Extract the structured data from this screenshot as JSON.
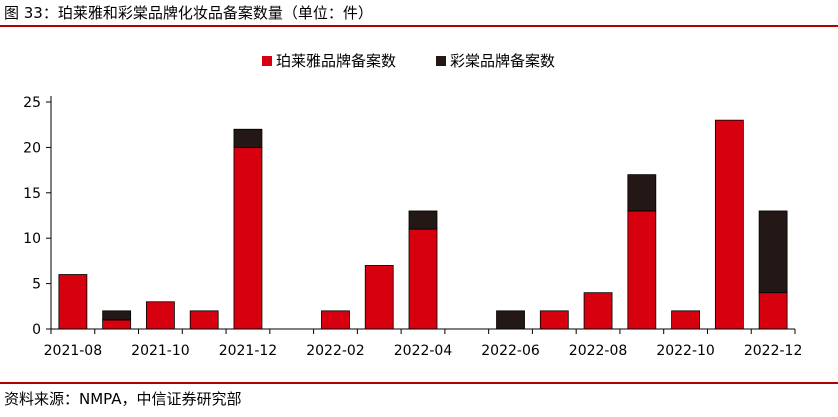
{
  "figure": {
    "title": "图 33：珀莱雅和彩棠品牌化妆品备案数量（单位：件）",
    "source": "资料来源：NMPA，中信证券研究部"
  },
  "colors": {
    "series_a": "#d6000f",
    "series_b": "#231815",
    "rule": "#b30000",
    "axis": "#000000"
  },
  "chart_data": {
    "type": "bar",
    "stacked": true,
    "categories": [
      "2021-08",
      "2021-09",
      "2021-10",
      "2021-11",
      "2021-12",
      "2022-01",
      "2022-02",
      "2022-03",
      "2022-04",
      "2022-05",
      "2022-06",
      "2022-07",
      "2022-08",
      "2022-09",
      "2022-10",
      "2022-11",
      "2022-12"
    ],
    "tick_labels": [
      "2021-08",
      "2021-10",
      "2021-12",
      "2022-02",
      "2022-04",
      "2022-06",
      "2022-08",
      "2022-10",
      "2022-12"
    ],
    "series": [
      {
        "name": "珀莱雅品牌备案数",
        "values": [
          6,
          1,
          3,
          2,
          20,
          0,
          2,
          7,
          11,
          0,
          0,
          2,
          4,
          13,
          2,
          23,
          4
        ]
      },
      {
        "name": "彩棠品牌备案数",
        "values": [
          0,
          1,
          0,
          0,
          2,
          0,
          0,
          0,
          2,
          0,
          2,
          0,
          0,
          4,
          0,
          0,
          9
        ]
      }
    ],
    "ylim": [
      0,
      25
    ],
    "yticks": [
      0,
      5,
      10,
      15,
      20,
      25
    ],
    "legend_position": "top-right",
    "grid": false
  }
}
